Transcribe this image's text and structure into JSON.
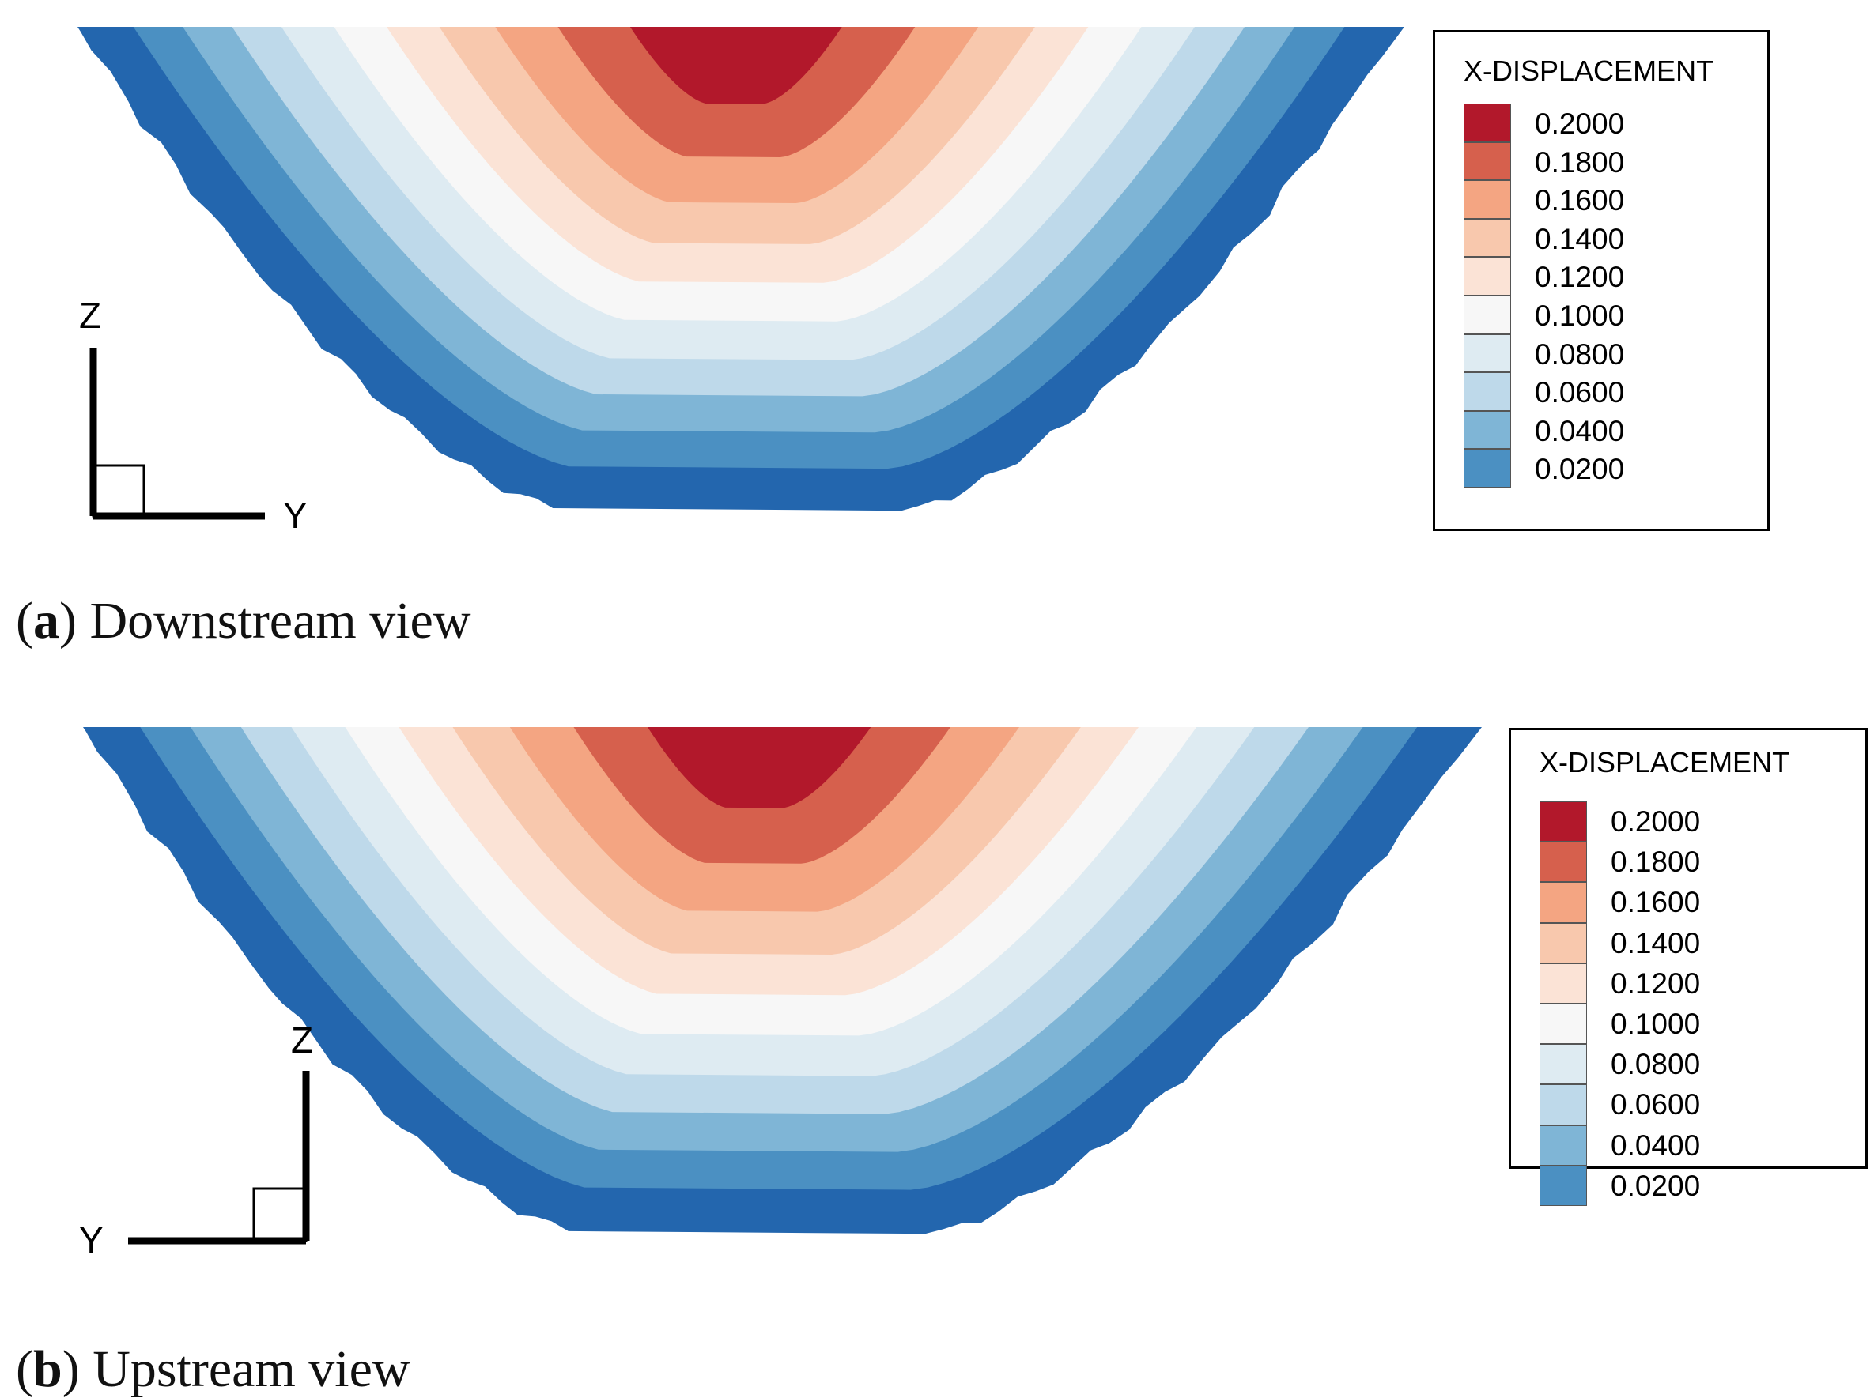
{
  "chart_data": [
    {
      "type": "heatmap",
      "panel_label": "a",
      "caption": "Downstream view",
      "legend_title": "X-DISPLACEMENT",
      "levels": [
        0.2,
        0.18,
        0.16,
        0.14,
        0.12,
        0.1,
        0.08,
        0.06,
        0.04,
        0.02
      ],
      "level_labels": [
        "0.2000",
        "0.1800",
        "0.1600",
        "0.1400",
        "0.1200",
        "0.1000",
        "0.0800",
        "0.0600",
        "0.0400",
        "0.0200"
      ],
      "level_colors": [
        "#b2182b",
        "#d6604d",
        "#f4a582",
        "#f8c8ad",
        "#fbe3d6",
        "#f7f7f7",
        "#deebf2",
        "#bed9ea",
        "#7fb5d6",
        "#4b90c2",
        "#2366ae"
      ],
      "axis_triad": {
        "vertical": "Z",
        "horizontal": "Y",
        "horizontal_direction": "right"
      },
      "legend_placement": "right"
    },
    {
      "type": "heatmap",
      "panel_label": "b",
      "caption": "Upstream view",
      "legend_title": "X-DISPLACEMENT",
      "levels": [
        0.2,
        0.18,
        0.16,
        0.14,
        0.12,
        0.1,
        0.08,
        0.06,
        0.04,
        0.02
      ],
      "level_labels": [
        "0.2000",
        "0.1800",
        "0.1600",
        "0.1400",
        "0.1200",
        "0.1000",
        "0.0800",
        "0.0600",
        "0.0400",
        "0.0200"
      ],
      "level_colors": [
        "#b2182b",
        "#d6604d",
        "#f4a582",
        "#f8c8ad",
        "#fbe3d6",
        "#f7f7f7",
        "#deebf2",
        "#bed9ea",
        "#7fb5d6",
        "#4b90c2",
        "#2366ae"
      ],
      "axis_triad": {
        "vertical": "Z",
        "horizontal": "Y",
        "horizontal_direction": "left"
      },
      "legend_placement": "right"
    }
  ]
}
